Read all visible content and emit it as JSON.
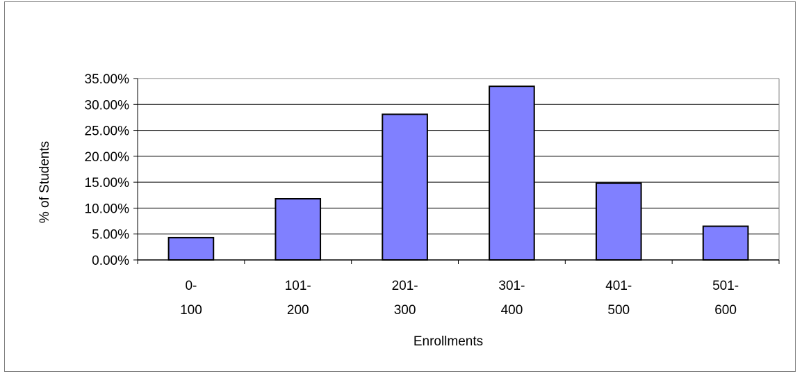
{
  "chart_data": {
    "type": "bar",
    "title": "",
    "xlabel": "Enrollments",
    "ylabel": "% of Students",
    "categories": [
      [
        "0-",
        "100"
      ],
      [
        "101-",
        "200"
      ],
      [
        "201-",
        "300"
      ],
      [
        "301-",
        "400"
      ],
      [
        "401-",
        "500"
      ],
      [
        "501-",
        "600"
      ]
    ],
    "values": [
      4.3,
      11.8,
      28.1,
      33.5,
      14.8,
      6.5
    ],
    "ylim": [
      0,
      35
    ],
    "yticks": [
      "0.00%",
      "5.00%",
      "10.00%",
      "15.00%",
      "20.00%",
      "25.00%",
      "30.00%",
      "35.00%"
    ],
    "grid": true,
    "legend": "none",
    "bar_color": "#8080ff",
    "bar_border": "#000000"
  }
}
